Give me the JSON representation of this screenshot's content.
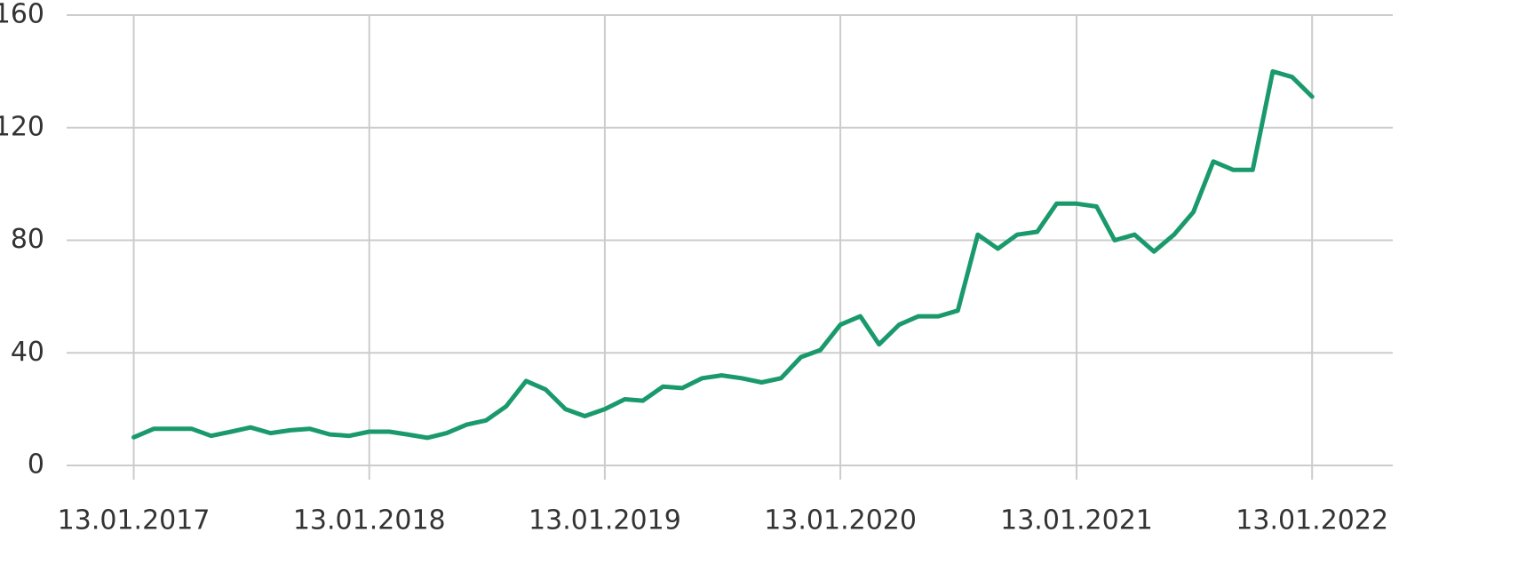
{
  "chart_data": {
    "type": "line",
    "x": [
      "13.01.2017",
      "13.02.2017",
      "13.03.2017",
      "13.04.2017",
      "13.05.2017",
      "13.06.2017",
      "13.07.2017",
      "13.08.2017",
      "13.09.2017",
      "13.10.2017",
      "13.11.2017",
      "13.12.2017",
      "13.01.2018",
      "13.02.2018",
      "13.03.2018",
      "13.04.2018",
      "13.05.2018",
      "13.06.2018",
      "13.07.2018",
      "13.08.2018",
      "13.09.2018",
      "13.10.2018",
      "13.11.2018",
      "13.12.2018",
      "13.01.2019",
      "13.02.2019",
      "13.03.2019",
      "13.04.2019",
      "13.05.2019",
      "13.06.2019",
      "13.07.2019",
      "13.08.2019",
      "13.09.2019",
      "13.10.2019",
      "13.11.2019",
      "13.12.2019",
      "13.01.2020",
      "13.02.2020",
      "13.03.2020",
      "13.04.2020",
      "13.05.2020",
      "13.06.2020",
      "13.07.2020",
      "13.08.2020",
      "13.09.2020",
      "13.10.2020",
      "13.11.2020",
      "13.12.2020",
      "13.01.2021",
      "13.02.2021",
      "13.03.2021",
      "13.04.2021",
      "13.05.2021",
      "13.06.2021",
      "13.07.2021",
      "13.08.2021",
      "13.09.2021",
      "13.10.2021",
      "13.11.2021",
      "13.12.2021",
      "13.01.2022"
    ],
    "series": [
      {
        "color": "#1a9a6c",
        "values": [
          10,
          13,
          13,
          13,
          10.5,
          12,
          13.5,
          11.5,
          12.5,
          13,
          11,
          10.5,
          12,
          12,
          11,
          9.8,
          11.5,
          14.5,
          16,
          21,
          30,
          27,
          20,
          17.5,
          20,
          23.5,
          23,
          28,
          27.5,
          31,
          32,
          31,
          29.5,
          31,
          38.5,
          41,
          50,
          53,
          43,
          50,
          53,
          53,
          55,
          82,
          77,
          82,
          83,
          93,
          93,
          92,
          80,
          82,
          76,
          82,
          90,
          108,
          105,
          105,
          140,
          138,
          131
        ]
      }
    ],
    "xlim": [
      "01.10.2016",
      "18.05.2022"
    ],
    "xticks": [
      "13.01.2017",
      "13.01.2018",
      "13.01.2019",
      "13.01.2020",
      "13.01.2021",
      "13.01.2022"
    ],
    "ylim": [
      0,
      160
    ],
    "yticks": [
      0,
      40,
      80,
      120,
      160
    ],
    "grid": true
  }
}
